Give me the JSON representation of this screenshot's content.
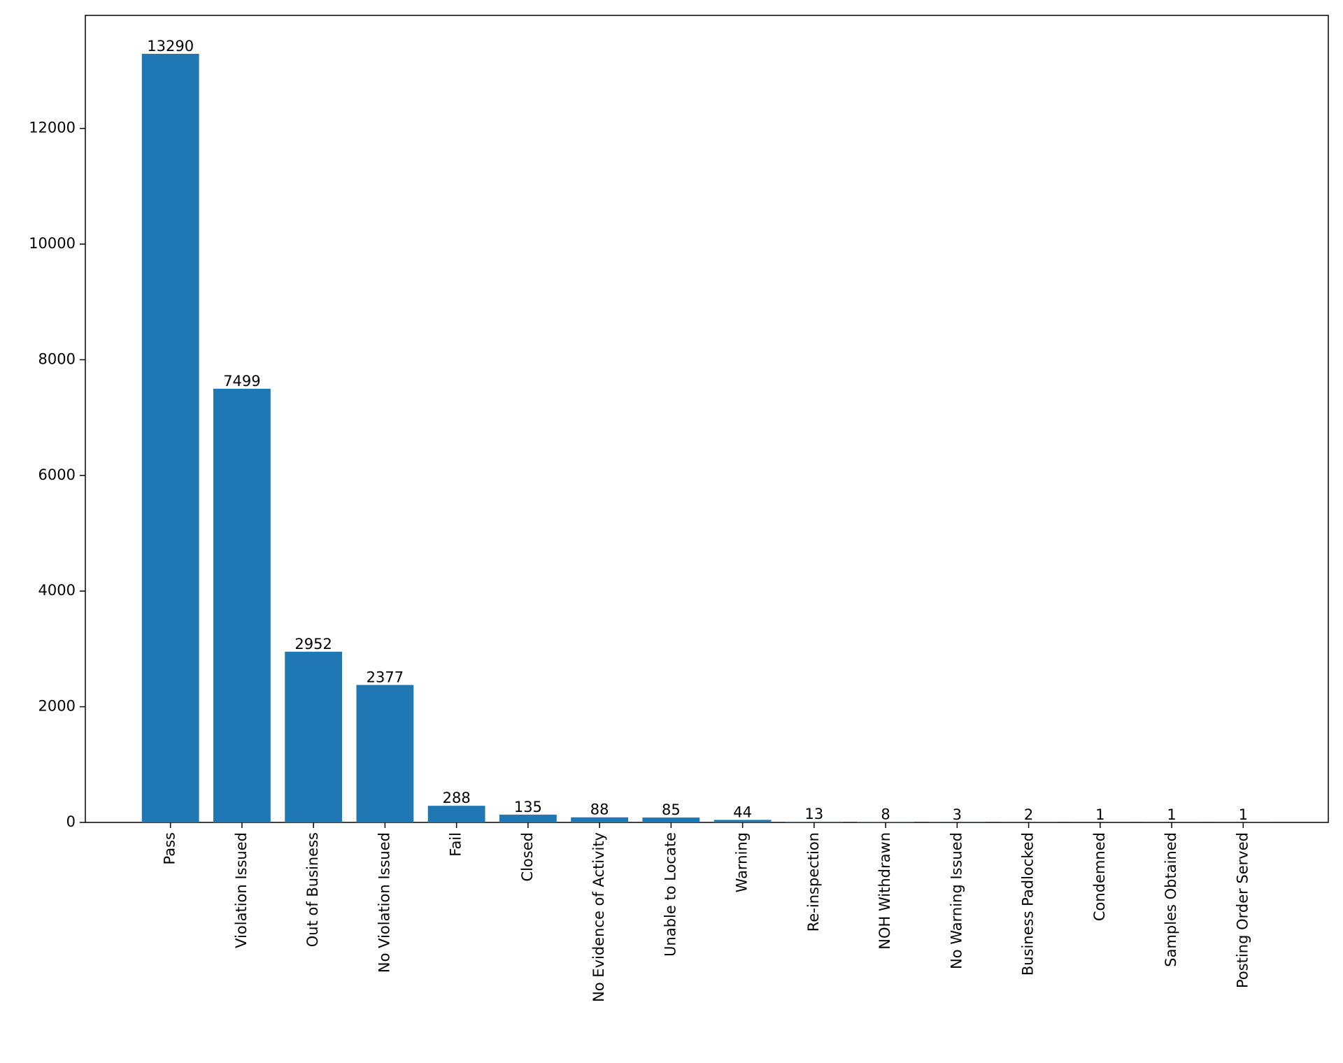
{
  "chart_data": {
    "type": "bar",
    "categories": [
      "Pass",
      "Violation Issued",
      "Out of Business",
      "No Violation Issued",
      "Fail",
      "Closed",
      "No Evidence of Activity",
      "Unable to Locate",
      "Warning",
      "Re-inspection",
      "NOH Withdrawn",
      "No Warning Issued",
      "Business Padlocked",
      "Condemned",
      "Samples Obtained",
      "Posting Order Served"
    ],
    "values": [
      13290,
      7499,
      2952,
      2377,
      288,
      135,
      88,
      85,
      44,
      13,
      8,
      3,
      2,
      1,
      1,
      1
    ],
    "color": "#1f77b4",
    "ylim": [
      0,
      13954.5
    ],
    "yticks": [
      0,
      2000,
      4000,
      6000,
      8000,
      10000,
      12000
    ],
    "grid": false
  }
}
